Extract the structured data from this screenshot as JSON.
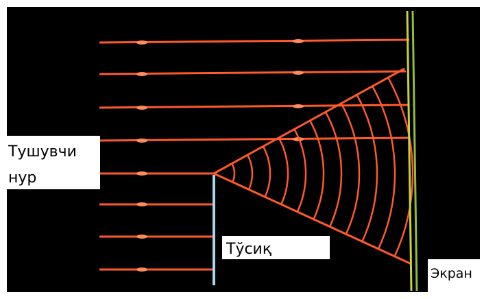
{
  "labels": {
    "incident_ray": {
      "lines": [
        "Тушувчи",
        "нур"
      ]
    },
    "barrier": "Тўсиқ",
    "screen": "Экран"
  }
}
